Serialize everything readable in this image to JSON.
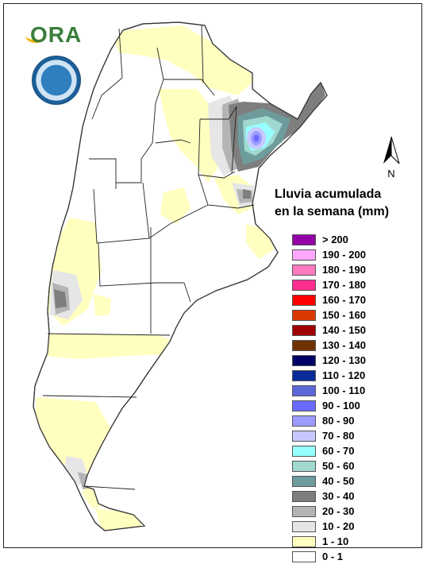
{
  "logo": {
    "text": "ORA"
  },
  "north": {
    "label": "N"
  },
  "legend": {
    "title_line1": "Lluvia acumulada",
    "title_line2": "en la semana (mm)",
    "items": [
      {
        "label": "> 200",
        "color": "#9400a8"
      },
      {
        "label": "190 - 200",
        "color": "#ffa8ff"
      },
      {
        "label": "180 - 190",
        "color": "#ff7abf"
      },
      {
        "label": "170 - 180",
        "color": "#ff2d8f"
      },
      {
        "label": "160 - 170",
        "color": "#ff0000"
      },
      {
        "label": "150 - 160",
        "color": "#d83a00"
      },
      {
        "label": "140 - 150",
        "color": "#a00000"
      },
      {
        "label": "130 - 140",
        "color": "#6e3200"
      },
      {
        "label": "120 - 130",
        "color": "#000066"
      },
      {
        "label": "110 - 120",
        "color": "#0a2a9c"
      },
      {
        "label": "100 - 110",
        "color": "#5a68d8"
      },
      {
        "label": "90 - 100",
        "color": "#6b6bff"
      },
      {
        "label": "80 - 90",
        "color": "#9c9cff"
      },
      {
        "label": "70 - 80",
        "color": "#c8c8ff"
      },
      {
        "label": "60 - 70",
        "color": "#96ffff"
      },
      {
        "label": "50 - 60",
        "color": "#a0d8d0"
      },
      {
        "label": "40 - 50",
        "color": "#6e9c9c"
      },
      {
        "label": "30 - 40",
        "color": "#7e7e7e"
      },
      {
        "label": "20 - 30",
        "color": "#b4b4b4"
      },
      {
        "label": "10 - 20",
        "color": "#e6e6e6"
      },
      {
        "label": "1 - 10",
        "color": "#ffffc0"
      },
      {
        "label": "0 - 1",
        "color": "#ffffff"
      }
    ]
  }
}
